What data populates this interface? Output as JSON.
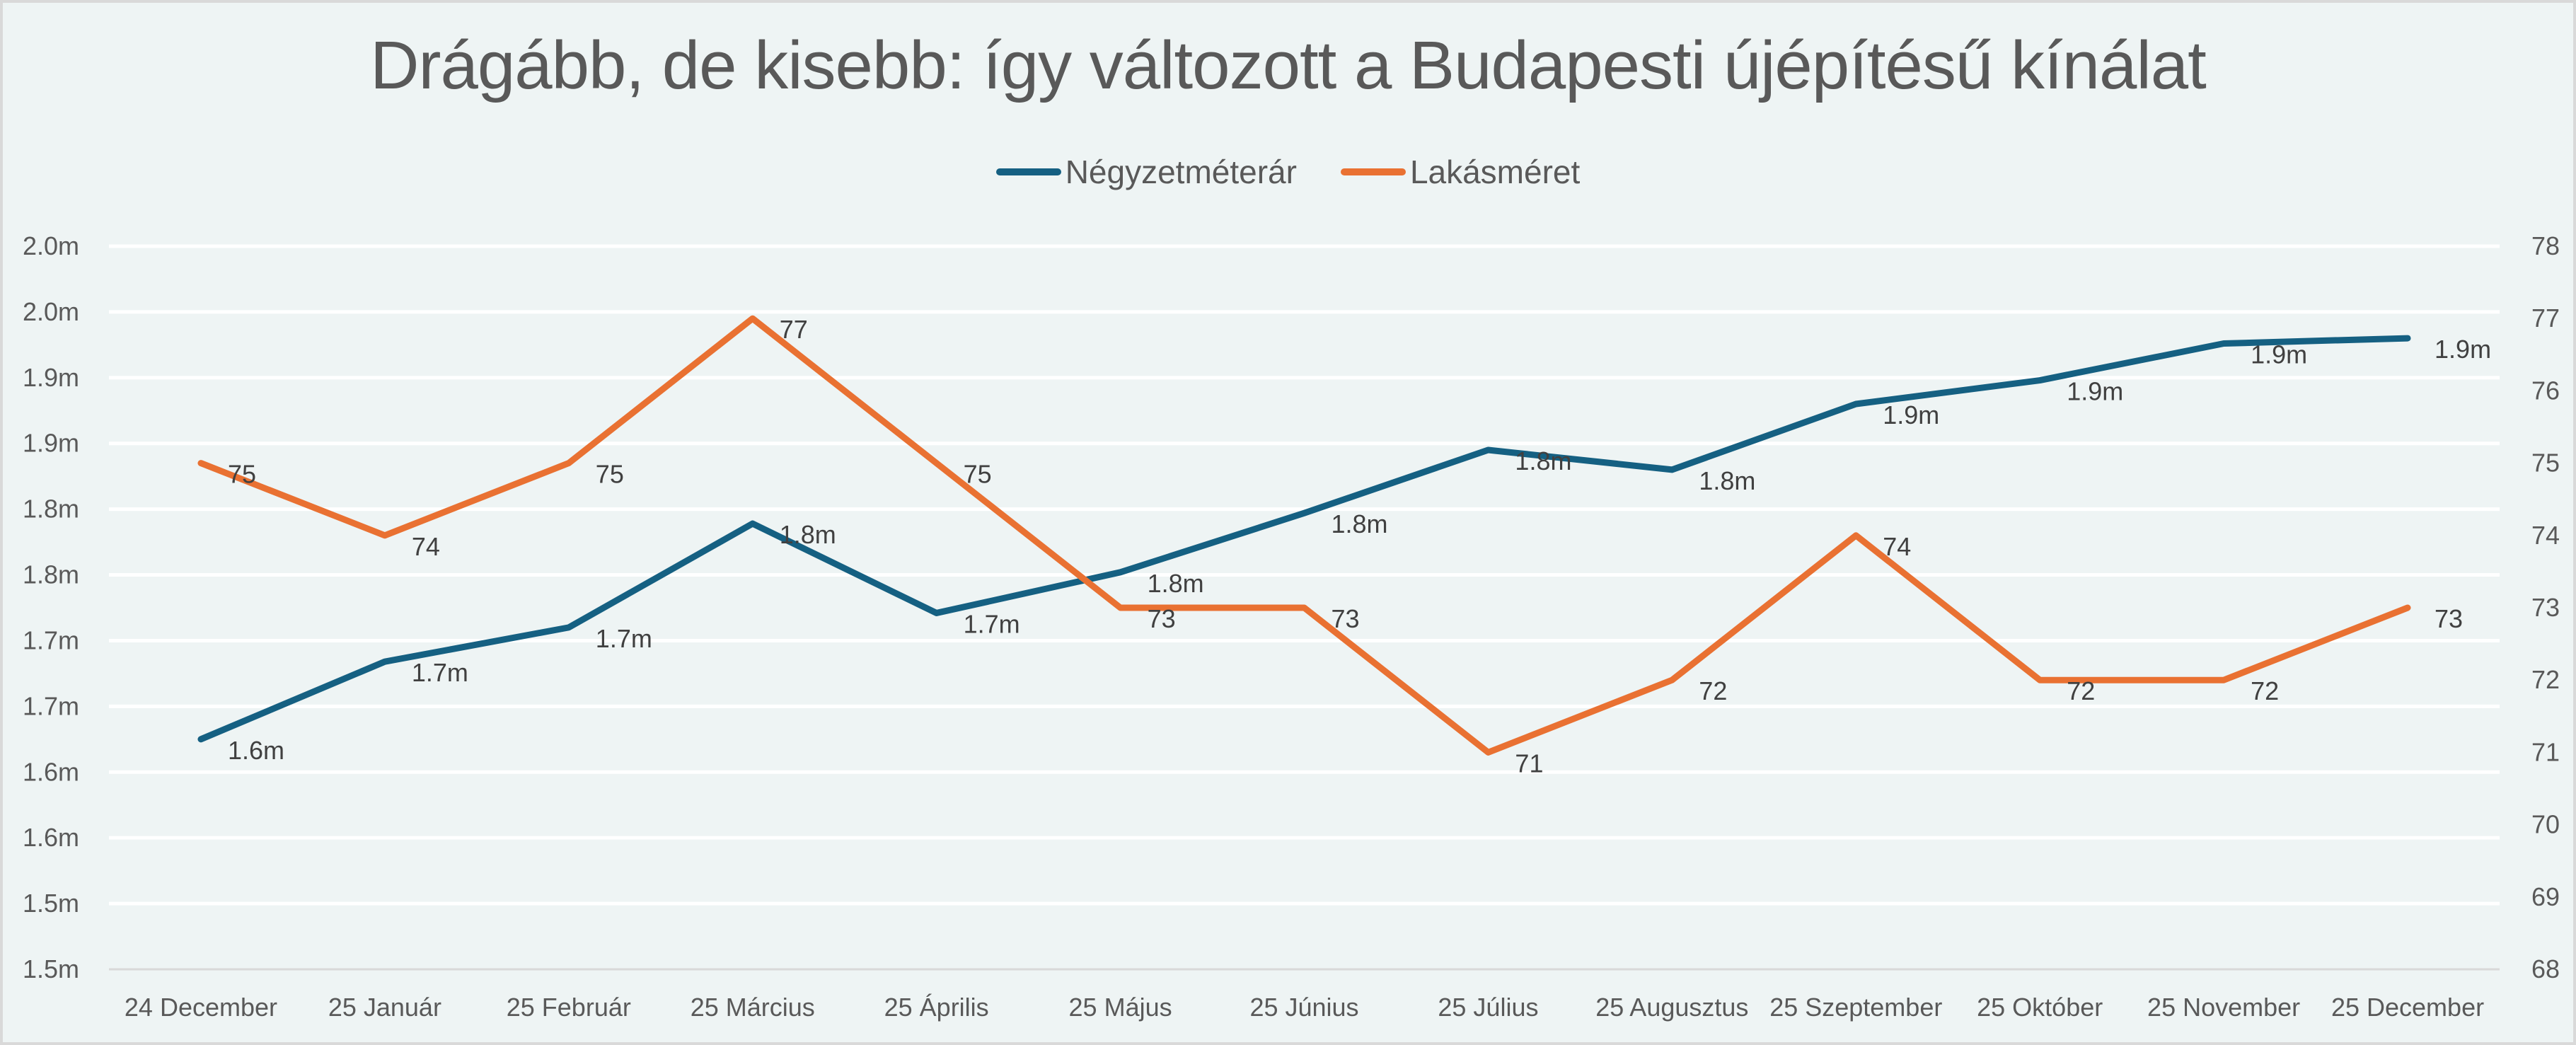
{
  "chart_data": {
    "type": "line",
    "title": "Drágább, de kisebb: így változott a Budapesti újépítésű kínálat",
    "categories": [
      "24 December",
      "25 Január",
      "25 Február",
      "25 Március",
      "25 Április",
      "25 Május",
      "25 Június",
      "25 Július",
      "25 Augusztus",
      "25 Szeptember",
      "25 Október",
      "25 November",
      "25 December"
    ],
    "series": [
      {
        "name": "Négyzetméterár",
        "axis": "left",
        "color": "#156082",
        "values": [
          1625000,
          1684000,
          1710000,
          1789000,
          1721000,
          1752000,
          1797000,
          1845000,
          1830000,
          1880000,
          1898000,
          1926000,
          1930000
        ],
        "data_labels": [
          "1.6m",
          "1.7m",
          "1.7m",
          "1.8m",
          "1.7m",
          "1.8m",
          "1.8m",
          "1.8m",
          "1.8m",
          "1.9m",
          "1.9m",
          "1.9m",
          "1.9m"
        ]
      },
      {
        "name": "Lakásméret",
        "axis": "right",
        "color": "#E97132",
        "values": [
          75,
          74,
          75,
          77,
          75,
          73,
          73,
          71,
          72,
          74,
          72,
          72,
          73
        ],
        "data_labels": [
          "75",
          "74",
          "75",
          "77",
          "75",
          "73",
          "73",
          "71",
          "72",
          "74",
          "72",
          "72",
          "73"
        ]
      }
    ],
    "y_left": {
      "ylim": [
        1450000,
        2000000
      ],
      "step": 50000,
      "tick_labels": [
        "1.5m",
        "1.5m",
        "1.6m",
        "1.6m",
        "1.7m",
        "1.7m",
        "1.8m",
        "1.8m",
        "1.9m",
        "1.9m",
        "2.0m",
        "2.0m"
      ]
    },
    "y_right": {
      "ylim": [
        68,
        78
      ],
      "step": 1,
      "tick_labels": [
        "68",
        "69",
        "70",
        "71",
        "72",
        "73",
        "74",
        "75",
        "76",
        "77",
        "78"
      ]
    },
    "xlabel": "",
    "ylabel": "",
    "grid": true,
    "legend": "top-center"
  },
  "colors": {
    "background": "#EEF4F4",
    "gridline": "#FFFFFF",
    "axis_line": "#D9D9D9",
    "text": "#595959"
  }
}
